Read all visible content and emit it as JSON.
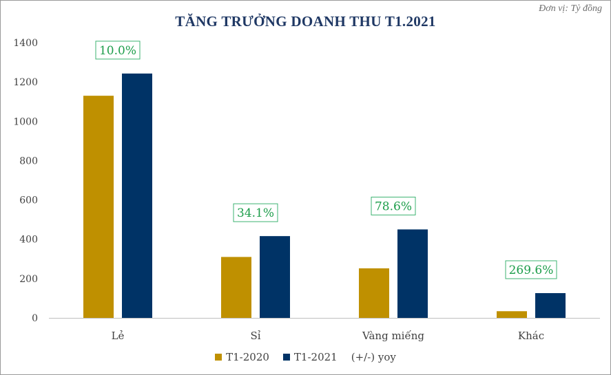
{
  "unit_note": "Đơn vị: Tỷ đồng",
  "title": "TĂNG TRƯỞNG DOANH THU T1.2021",
  "colors": {
    "series_2020": "#bf9000",
    "series_2021": "#003366",
    "yoy_text": "#1c9d4a",
    "yoy_border": "#3cb371",
    "axis": "#bfbfbf"
  },
  "legend": {
    "s2020": "T1-2020",
    "s2021": "T1-2021",
    "yoy": "(+/-) yoy"
  },
  "chart_data": {
    "type": "bar",
    "title": "TĂNG TRƯỞNG DOANH THU T1.2021",
    "categories": [
      "Lẻ",
      "Sỉ",
      "Vàng miếng",
      "Khác"
    ],
    "series": [
      {
        "name": "T1-2020",
        "values": [
          1130,
          310,
          252,
          34
        ]
      },
      {
        "name": "T1-2021",
        "values": [
          1243,
          416,
          450,
          126
        ]
      }
    ],
    "yoy_labels": [
      "10.0%",
      "34.1%",
      "78.6%",
      "269.6%"
    ],
    "yoy_series_name": "(+/-) yoy",
    "ylim": [
      0,
      1400
    ],
    "yticks": [
      0,
      200,
      400,
      600,
      800,
      1000,
      1200,
      1400
    ],
    "grid": false,
    "legend_position": "bottom"
  }
}
